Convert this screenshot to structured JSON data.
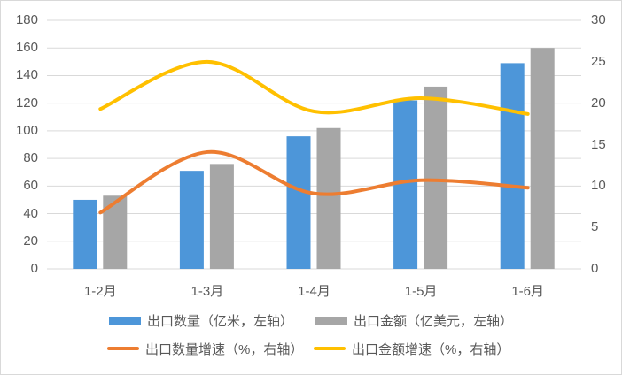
{
  "chart_data": {
    "type": "combo-bar-line",
    "title": "",
    "categories": [
      "1-2月",
      "1-3月",
      "1-4月",
      "1-5月",
      "1-6月"
    ],
    "series": [
      {
        "name": "出口数量（亿米，左轴）",
        "type": "bar",
        "axis": "left",
        "color": "#4D96D9",
        "values": [
          50,
          71,
          96,
          122,
          149
        ]
      },
      {
        "name": "出口金额（亿美元，左轴）",
        "type": "bar",
        "axis": "left",
        "color": "#A6A6A6",
        "values": [
          53,
          76,
          102,
          132,
          160
        ]
      },
      {
        "name": "出口数量增速（%，右轴）",
        "type": "line",
        "axis": "right",
        "color": "#ED7D31",
        "values": [
          6.8,
          14.1,
          9.1,
          10.7,
          9.8
        ]
      },
      {
        "name": "出口金额增速（%，右轴）",
        "type": "line",
        "axis": "right",
        "color": "#FFC000",
        "values": [
          19.3,
          25.0,
          19.0,
          20.6,
          18.7
        ]
      }
    ],
    "left_axis": {
      "min": 0,
      "max": 180,
      "step": 20,
      "ticks": [
        "0",
        "20",
        "40",
        "60",
        "80",
        "100",
        "120",
        "140",
        "160",
        "180"
      ]
    },
    "right_axis": {
      "min": 0,
      "max": 30,
      "step": 5,
      "ticks": [
        "0",
        "5",
        "10",
        "15",
        "20",
        "25",
        "30"
      ]
    },
    "grid": true,
    "gridline_color": "#D9D9D9",
    "legend_position": "bottom"
  },
  "colors": {
    "background": "#FFFFFF",
    "border": "#D9D9D9",
    "text": "#595959",
    "bar_blue": "#4D96D9",
    "bar_gray": "#A6A6A6",
    "line_orange": "#ED7D31",
    "line_yellow": "#FFC000"
  }
}
